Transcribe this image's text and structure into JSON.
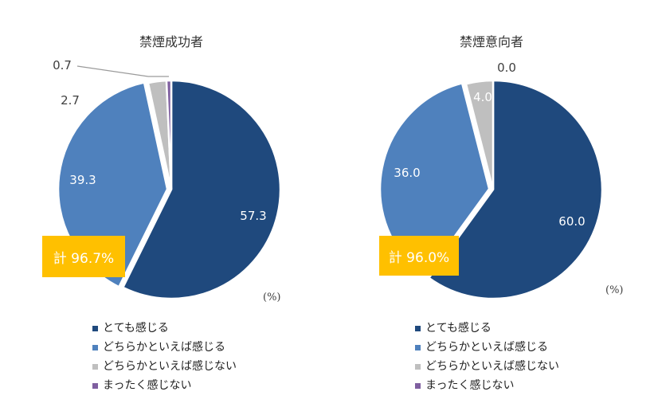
{
  "colors": {
    "very": "#1F497D",
    "somewhat": "#4F81BD",
    "not_really": "#BFBFBF",
    "not_at_all": "#7F5FA0",
    "total_box": "#FFC000"
  },
  "unit_label": "(%)",
  "legend": [
    "とても感じる",
    "どちらかといえば感じる",
    "どちらかといえば感じない",
    "まったく感じない"
  ],
  "chart_data": [
    {
      "type": "pie",
      "title": "禁煙成功者",
      "categories": [
        "とても感じる",
        "どちらかといえば感じる",
        "どちらかといえば感じない",
        "まったく感じない"
      ],
      "values": [
        57.3,
        39.3,
        2.7,
        0.7
      ],
      "labels": [
        "57.3",
        "39.3",
        "2.7",
        "0.7"
      ],
      "total_label": "計 96.7%"
    },
    {
      "type": "pie",
      "title": "禁煙意向者",
      "categories": [
        "とても感じる",
        "どちらかといえば感じる",
        "どちらかといえば感じない",
        "まったく感じない"
      ],
      "values": [
        60.0,
        36.0,
        4.0,
        0.0
      ],
      "labels": [
        "60.0",
        "36.0",
        "4.0",
        "0.0"
      ],
      "total_label": "計 96.0%"
    }
  ]
}
